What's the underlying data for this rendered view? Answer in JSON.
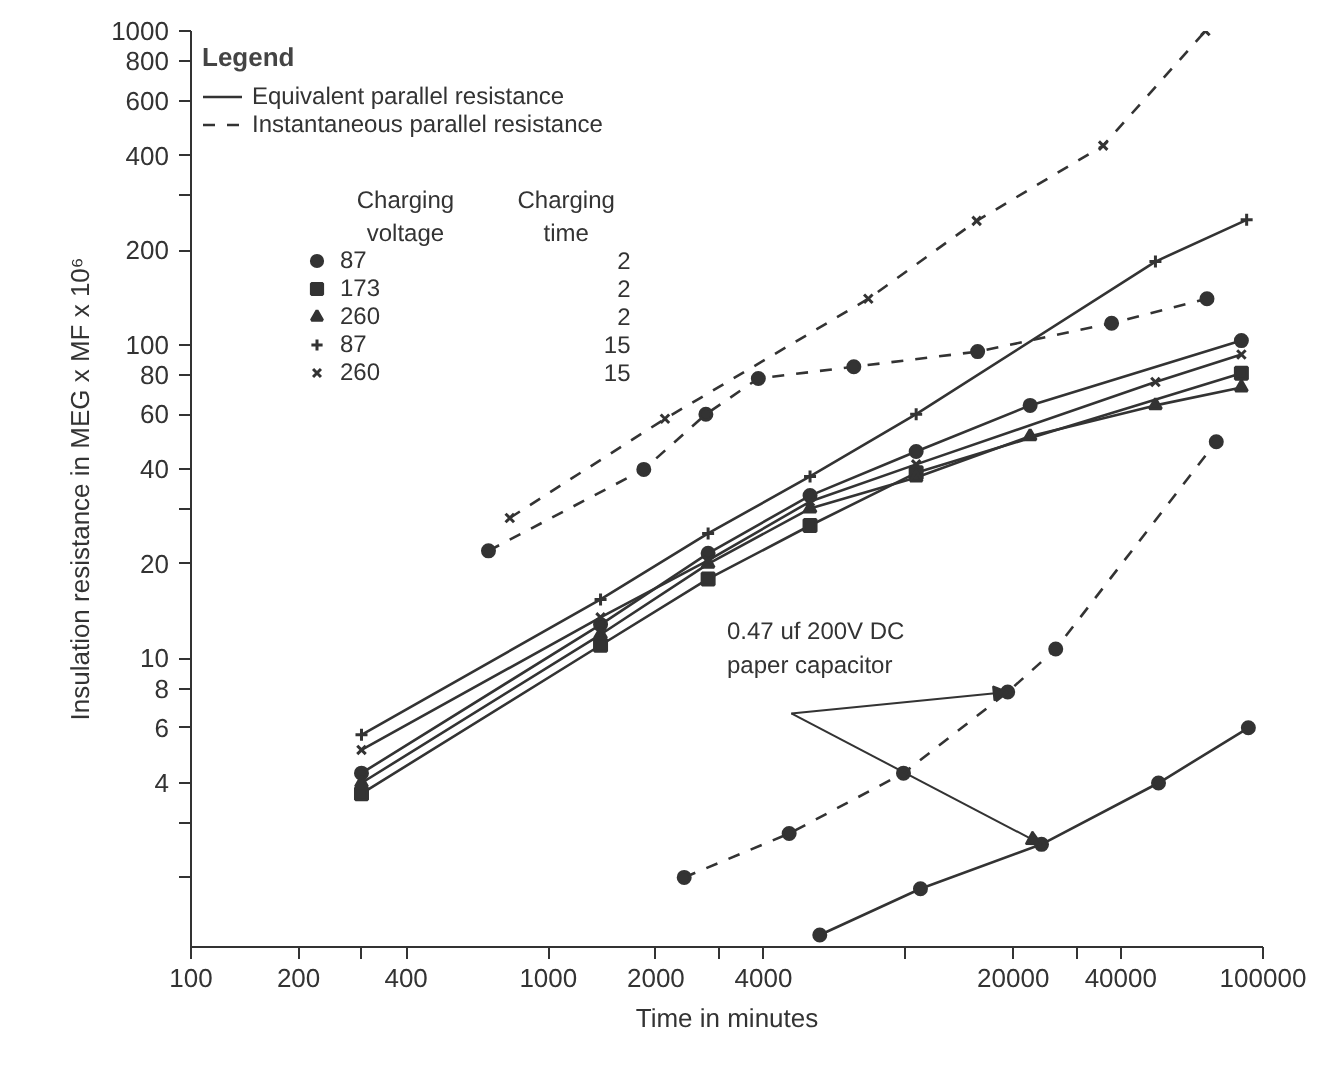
{
  "chart_data": {
    "type": "line",
    "log": "xy",
    "xlabel": "Time in minutes",
    "ylabel": "Insulation resistance in MEG x MF x 10⁶",
    "legend": "top left",
    "legend_title": "Legend",
    "annotations": [
      "Charging voltage",
      "Charging time",
      "2",
      "2",
      "2",
      "15",
      "15",
      "0.47 uf 200V DC paper capacitor"
    ],
    "xlim": [
      100,
      100000
    ],
    "ylim": [
      1.2,
      1000
    ],
    "xticks": [
      100,
      200,
      {
        "value": 300,
        "label": null
      },
      400,
      1000,
      2000,
      {
        "value": 3000,
        "label": null
      },
      4000,
      {
        "value": 10000,
        "label": null
      },
      20000,
      {
        "value": 30000,
        "label": null
      },
      40000,
      100000
    ],
    "yticks": [
      {
        "value": 2,
        "label": null
      },
      {
        "value": 3,
        "label": null
      },
      4,
      6,
      8,
      10,
      20,
      {
        "value": 30,
        "label": null
      },
      40,
      60,
      80,
      100,
      200,
      {
        "value": 300,
        "label": null
      },
      400,
      600,
      800,
      1000
    ],
    "series": [
      {
        "name": "87",
        "color": "#333333",
        "marker": "circle",
        "line_style": "solid",
        "x": [
          300,
          1400,
          2800,
          5400,
          10700,
          22300,
          87000
        ],
        "values": [
          4.3,
          12.8,
          21.6,
          33,
          45.6,
          64,
          103
        ]
      },
      {
        "name": "173",
        "color": "#333333",
        "marker": "square",
        "line_style": "solid",
        "x": [
          300,
          1400,
          2800,
          5400,
          10700,
          87000
        ],
        "values": [
          3.7,
          11.0,
          17.9,
          26.5,
          39,
          81
        ]
      },
      {
        "name": "260",
        "color": "#333333",
        "marker": "triangle",
        "line_style": "solid",
        "x": [
          300,
          1400,
          2800,
          5400,
          10700,
          22300,
          50000,
          87000
        ],
        "values": [
          4.0,
          11.9,
          20,
          30,
          37.7,
          51,
          64,
          73
        ]
      },
      {
        "name": "87",
        "color": "#333333",
        "marker": "cross",
        "line_style": "solid",
        "x": [
          300,
          1400,
          2800,
          5400,
          10700,
          50000,
          90000
        ],
        "values": [
          5.7,
          15.4,
          25,
          38,
          60,
          184,
          250
        ]
      },
      {
        "name": "260",
        "color": "#333333",
        "marker": "x",
        "line_style": "solid",
        "x": [
          300,
          1400,
          2800,
          5400,
          10700,
          50000,
          87000
        ],
        "values": [
          5.1,
          13.5,
          20.5,
          31.6,
          41.5,
          76,
          93
        ]
      },
      {
        "name": "Equivalent parallel resistance",
        "color": "#333333",
        "marker": "circle",
        "line_style": "solid",
        "x": [
          5750,
          11000,
          24000,
          51000,
          91000
        ],
        "values": [
          1.31,
          1.84,
          2.55,
          4.0,
          6.0
        ]
      },
      {
        "name": "Instantaneous parallel resistance",
        "color": "#333333",
        "marker": "x",
        "line_style": "dashed",
        "x": [
          780,
          2120,
          7860,
          15800,
          35700,
          69000
        ],
        "values": [
          28,
          58,
          140,
          248,
          431,
          1000
        ]
      },
      {
        "color": "#333333",
        "marker": "circle",
        "line_style": "dashed",
        "x": [
          680,
          1850,
          2760,
          3870,
          7160,
          15900,
          37700,
          69700
        ],
        "values": [
          22,
          40,
          60,
          78,
          85,
          95,
          117,
          140
        ]
      },
      {
        "color": "#333333",
        "marker": "circle",
        "line_style": "dashed",
        "x": [
          2400,
          4720,
          9860,
          19300,
          26300,
          74000
        ],
        "values": [
          2.0,
          2.76,
          4.3,
          7.8,
          10.7,
          49
        ]
      }
    ]
  }
}
